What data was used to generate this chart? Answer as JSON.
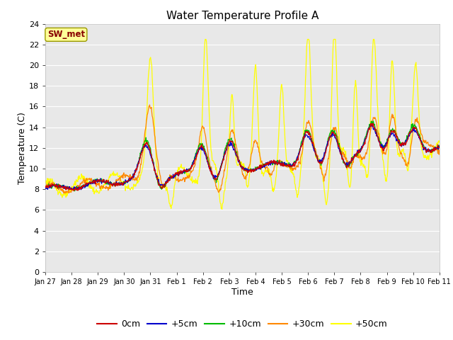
{
  "title": "Water Temperature Profile A",
  "xlabel": "Time",
  "ylabel": "Temperature (C)",
  "ylim": [
    0,
    24
  ],
  "yticks": [
    0,
    2,
    4,
    6,
    8,
    10,
    12,
    14,
    16,
    18,
    20,
    22,
    24
  ],
  "plot_bg_color": "#e8e8e8",
  "fig_bg_color": "#ffffff",
  "line_colors": {
    "0cm": "#cc0000",
    "+5cm": "#0000cc",
    "+10cm": "#00bb00",
    "+30cm": "#ff8800",
    "+50cm": "#ffff00"
  },
  "legend_label": "SW_met",
  "legend_box_facecolor": "#ffff99",
  "legend_box_edgecolor": "#999900",
  "legend_text_color": "#880000",
  "tick_labels": [
    "Jan 27",
    "Jan 28",
    "Jan 29",
    "Jan 30",
    "Jan 31",
    "Feb 1",
    "Feb 2",
    "Feb 3",
    "Feb 4",
    "Feb 5",
    "Feb 6",
    "Feb 7",
    "Feb 8",
    "Feb 9",
    "Feb 10",
    "Feb 11"
  ]
}
